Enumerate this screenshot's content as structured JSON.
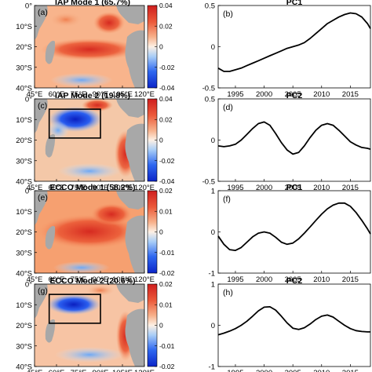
{
  "colors": {
    "ocean_scale": [
      "#0b24c8",
      "#2f68f0",
      "#7fb3f7",
      "#cfe6fb",
      "#fbe2c4",
      "#f7a878",
      "#ec5a3a",
      "#cf1e1e"
    ],
    "land": "#a8a8a8",
    "curve": "#000000"
  },
  "chart_data": [
    {
      "type": "heatmap",
      "panel_label": "(a)",
      "title": "IAP Mode 1 (65.7%)",
      "x_ticks": [
        "45°E",
        "60°E",
        "75°E",
        "90°E",
        "105°E",
        "120°E"
      ],
      "y_ticks": [
        "0°",
        "10°S",
        "20°S",
        "30°S",
        "40°S"
      ],
      "colorbar_ticks": [
        "0.04",
        "0.02",
        "0",
        "-0.02",
        "-0.04"
      ],
      "clim": [
        -0.04,
        0.04
      ],
      "box": null
    },
    {
      "type": "line",
      "panel_label": "(b)",
      "title": "PC1",
      "x_ticks": [
        "1995",
        "2000",
        "2005",
        "2010",
        "2015"
      ],
      "y_ticks": [
        "0.5",
        "0",
        "-0.5"
      ],
      "xlim": [
        1992,
        2018.5
      ],
      "ylim": [
        -0.5,
        0.5
      ],
      "x": [
        1992,
        1993,
        1994,
        1995,
        1996,
        1997,
        1998,
        1999,
        2000,
        2001,
        2002,
        2003,
        2004,
        2005,
        2006,
        2007,
        2008,
        2009,
        2010,
        2011,
        2012,
        2013,
        2014,
        2015,
        2016,
        2017,
        2018,
        2018.5
      ],
      "y": [
        -0.26,
        -0.3,
        -0.3,
        -0.28,
        -0.26,
        -0.23,
        -0.2,
        -0.17,
        -0.14,
        -0.11,
        -0.08,
        -0.05,
        -0.02,
        0.0,
        0.02,
        0.05,
        0.1,
        0.16,
        0.22,
        0.28,
        0.32,
        0.36,
        0.39,
        0.41,
        0.4,
        0.36,
        0.28,
        0.22
      ]
    },
    {
      "type": "heatmap",
      "panel_label": "(c)",
      "title": "IAP Mode 2 (19.8%)",
      "x_ticks": [
        "45°E",
        "60°E",
        "75°E",
        "90°E",
        "105°E",
        "120°E"
      ],
      "y_ticks": [
        "0°",
        "10°S",
        "20°S",
        "30°S",
        "40°S"
      ],
      "colorbar_ticks": [
        "0.04",
        "0.02",
        "0",
        "-0.02",
        "-0.04"
      ],
      "clim": [
        -0.04,
        0.04
      ],
      "box": {
        "lon": [
          55,
          90
        ],
        "lat": [
          -5,
          -19
        ]
      }
    },
    {
      "type": "line",
      "panel_label": "(d)",
      "title": "PC2",
      "x_ticks": [
        "1995",
        "2000",
        "2005",
        "2010",
        "2015"
      ],
      "y_ticks": [
        "0.5",
        "0",
        "-0.5"
      ],
      "xlim": [
        1992,
        2018.5
      ],
      "ylim": [
        -0.5,
        0.5
      ],
      "x": [
        1992,
        1993,
        1994,
        1995,
        1996,
        1997,
        1998,
        1999,
        2000,
        2001,
        2002,
        2003,
        2004,
        2005,
        2006,
        2007,
        2008,
        2009,
        2010,
        2011,
        2012,
        2013,
        2014,
        2015,
        2016,
        2017,
        2018,
        2018.5
      ],
      "y": [
        -0.07,
        -0.08,
        -0.07,
        -0.05,
        0.0,
        0.07,
        0.14,
        0.2,
        0.22,
        0.18,
        0.08,
        -0.03,
        -0.12,
        -0.17,
        -0.15,
        -0.07,
        0.03,
        0.12,
        0.18,
        0.2,
        0.18,
        0.12,
        0.05,
        -0.02,
        -0.06,
        -0.09,
        -0.1,
        -0.11
      ]
    },
    {
      "type": "heatmap",
      "panel_label": "(e)",
      "title": "ECCO Mode 1 (58.2%)",
      "x_ticks": [
        "45°E",
        "60°E",
        "75°E",
        "90°E",
        "105°E",
        "120°E"
      ],
      "y_ticks": [
        "0°",
        "10°S",
        "20°S",
        "30°S",
        "40°S"
      ],
      "colorbar_ticks": [
        "0.02",
        "0.01",
        "0",
        "-0.01",
        "-0.02"
      ],
      "clim": [
        -0.02,
        0.02
      ],
      "box": null
    },
    {
      "type": "line",
      "panel_label": "(f)",
      "title": "PC1",
      "x_ticks": [
        "1995",
        "2000",
        "2005",
        "2010",
        "2015"
      ],
      "y_ticks": [
        "1",
        "0",
        "-1"
      ],
      "xlim": [
        1992,
        2018.5
      ],
      "ylim": [
        -1,
        1
      ],
      "x": [
        1992,
        1993,
        1994,
        1995,
        1996,
        1997,
        1998,
        1999,
        2000,
        2001,
        2002,
        2003,
        2004,
        2005,
        2006,
        2007,
        2008,
        2009,
        2010,
        2011,
        2012,
        2013,
        2014,
        2015,
        2016,
        2017,
        2018,
        2018.5
      ],
      "y": [
        -0.1,
        -0.3,
        -0.43,
        -0.45,
        -0.38,
        -0.25,
        -0.12,
        -0.03,
        0.0,
        -0.03,
        -0.13,
        -0.25,
        -0.3,
        -0.27,
        -0.17,
        -0.03,
        0.12,
        0.28,
        0.43,
        0.56,
        0.65,
        0.7,
        0.7,
        0.62,
        0.47,
        0.28,
        0.07,
        -0.05
      ]
    },
    {
      "type": "heatmap",
      "panel_label": "(g)",
      "title": "ECCO Mode 2 (20.6%)",
      "x_ticks": [
        "45°E",
        "60°E",
        "75°E",
        "90°E",
        "105°E",
        "120°E"
      ],
      "y_ticks": [
        "0°",
        "10°S",
        "20°S",
        "30°S",
        "40°S"
      ],
      "colorbar_ticks": [
        "0.02",
        "0.01",
        "0",
        "-0.01",
        "-0.02"
      ],
      "clim": [
        -0.02,
        0.02
      ],
      "box": {
        "lon": [
          55,
          90
        ],
        "lat": [
          -5,
          -19
        ]
      }
    },
    {
      "type": "line",
      "panel_label": "(h)",
      "title": "PC2",
      "x_ticks": [
        "1995",
        "2000",
        "2005",
        "2010",
        "2015"
      ],
      "y_ticks": [
        "1",
        "0",
        "-1"
      ],
      "xlim": [
        1992,
        2018.5
      ],
      "ylim": [
        -1,
        1
      ],
      "x": [
        1992,
        1993,
        1994,
        1995,
        1996,
        1997,
        1998,
        1999,
        2000,
        2001,
        2002,
        2003,
        2004,
        2005,
        2006,
        2007,
        2008,
        2009,
        2010,
        2011,
        2012,
        2013,
        2014,
        2015,
        2016,
        2017,
        2018,
        2018.5
      ],
      "y": [
        -0.23,
        -0.19,
        -0.14,
        -0.08,
        0.0,
        0.1,
        0.22,
        0.35,
        0.44,
        0.45,
        0.37,
        0.22,
        0.06,
        -0.07,
        -0.1,
        -0.06,
        0.03,
        0.14,
        0.22,
        0.25,
        0.2,
        0.1,
        0.0,
        -0.08,
        -0.13,
        -0.15,
        -0.16,
        -0.16
      ]
    }
  ]
}
